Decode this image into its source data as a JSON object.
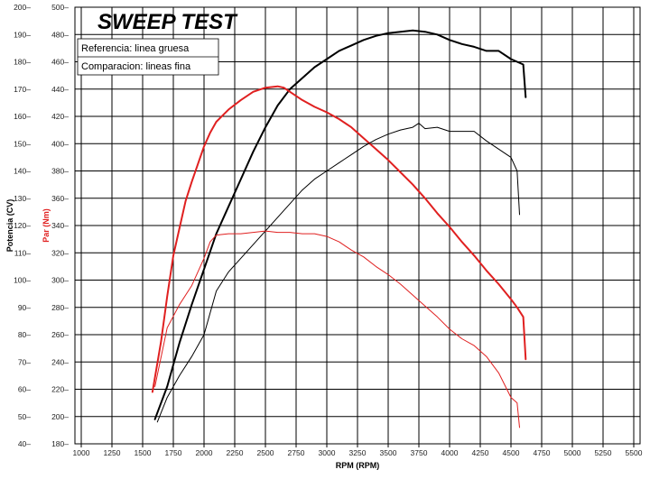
{
  "chart_data": {
    "type": "line",
    "title": "SWEEP TEST",
    "xlabel": "RPM (RPM)",
    "ylabel_left": "Potencia (CV)",
    "ylabel_right": "Par (Nm)",
    "xlim": [
      1000,
      5500
    ],
    "ylim_power": [
      40,
      200
    ],
    "ylim_torque": [
      180,
      500
    ],
    "x_ticks": [
      1000,
      1250,
      1500,
      1750,
      2000,
      2250,
      2500,
      2750,
      3000,
      3250,
      3500,
      3750,
      4000,
      4250,
      4500,
      4750,
      5000,
      5250,
      5500
    ],
    "power_ticks": [
      40,
      50,
      60,
      70,
      80,
      90,
      100,
      110,
      120,
      130,
      140,
      150,
      160,
      170,
      180,
      190,
      200
    ],
    "torque_ticks": [
      180,
      200,
      220,
      240,
      260,
      280,
      300,
      320,
      340,
      360,
      380,
      400,
      420,
      440,
      460,
      480,
      500
    ],
    "grid": true,
    "legend": [
      "Referencia: linea gruesa",
      "Comparacion: lineas fina"
    ],
    "series": [
      {
        "name": "Potencia referencia (gruesa)",
        "axis": "power",
        "color": "#000000",
        "width": "thick",
        "x": [
          1600,
          1700,
          1800,
          1900,
          2000,
          2100,
          2200,
          2300,
          2400,
          2500,
          2600,
          2700,
          2800,
          2900,
          3000,
          3100,
          3200,
          3300,
          3400,
          3500,
          3600,
          3700,
          3800,
          3900,
          4000,
          4100,
          4200,
          4300,
          4400,
          4500,
          4550,
          4600,
          4620
        ],
        "y": [
          49,
          61,
          77,
          91,
          104,
          117,
          127,
          137,
          147,
          156,
          164,
          170,
          174,
          178,
          181,
          184,
          186,
          188,
          189.5,
          190.5,
          191,
          191.5,
          191,
          190,
          188,
          186.5,
          185.5,
          184,
          184,
          181,
          180,
          179,
          167
        ]
      },
      {
        "name": "Par referencia (gruesa)",
        "axis": "torque",
        "color": "#e02020",
        "width": "thick",
        "x": [
          1580,
          1650,
          1700,
          1750,
          1800,
          1850,
          1900,
          1950,
          2000,
          2050,
          2100,
          2200,
          2300,
          2400,
          2500,
          2600,
          2650,
          2700,
          2800,
          2900,
          3000,
          3100,
          3200,
          3300,
          3400,
          3500,
          3600,
          3700,
          3800,
          3900,
          4000,
          4100,
          4200,
          4300,
          4400,
          4500,
          4550,
          4600,
          4620
        ],
        "y": [
          218,
          255,
          288,
          318,
          338,
          358,
          372,
          385,
          398,
          408,
          416,
          425,
          432,
          438,
          441,
          442,
          441,
          438,
          432,
          427,
          423,
          418,
          412,
          404,
          396,
          388,
          379,
          370,
          360,
          349,
          339,
          328,
          318,
          307,
          297,
          286,
          280,
          273,
          242
        ]
      },
      {
        "name": "Potencia comparacion (fina)",
        "axis": "power",
        "color": "#000000",
        "width": "thin",
        "x": [
          1620,
          1700,
          1800,
          1900,
          2000,
          2100,
          2200,
          2300,
          2400,
          2500,
          2600,
          2700,
          2800,
          2900,
          3000,
          3100,
          3200,
          3300,
          3400,
          3500,
          3600,
          3700,
          3750,
          3800,
          3900,
          4000,
          4100,
          4200,
          4300,
          4400,
          4500,
          4550,
          4570
        ],
        "y": [
          48,
          57,
          65,
          72,
          80,
          96,
          103,
          108,
          113,
          118,
          123,
          128,
          133,
          137,
          140,
          143,
          146,
          149,
          151.5,
          153.5,
          155,
          156,
          157.5,
          155.5,
          156,
          154.5,
          154.5,
          154.5,
          151,
          148,
          145,
          140,
          124
        ]
      },
      {
        "name": "Par comparacion (fina)",
        "axis": "torque",
        "color": "#e02020",
        "width": "thin",
        "x": [
          1600,
          1700,
          1800,
          1900,
          2000,
          2050,
          2100,
          2200,
          2300,
          2400,
          2500,
          2600,
          2700,
          2800,
          2900,
          3000,
          3100,
          3200,
          3300,
          3400,
          3500,
          3600,
          3700,
          3800,
          3900,
          4000,
          4100,
          4200,
          4300,
          4400,
          4500,
          4550,
          4570
        ],
        "y": [
          222,
          265,
          282,
          296,
          316,
          328,
          333,
          334,
          334,
          335,
          336,
          335,
          335,
          334,
          334,
          332,
          328,
          322,
          317,
          310,
          304,
          297,
          289,
          281,
          273,
          264,
          257,
          252,
          244,
          232,
          214,
          210,
          192
        ]
      }
    ]
  }
}
